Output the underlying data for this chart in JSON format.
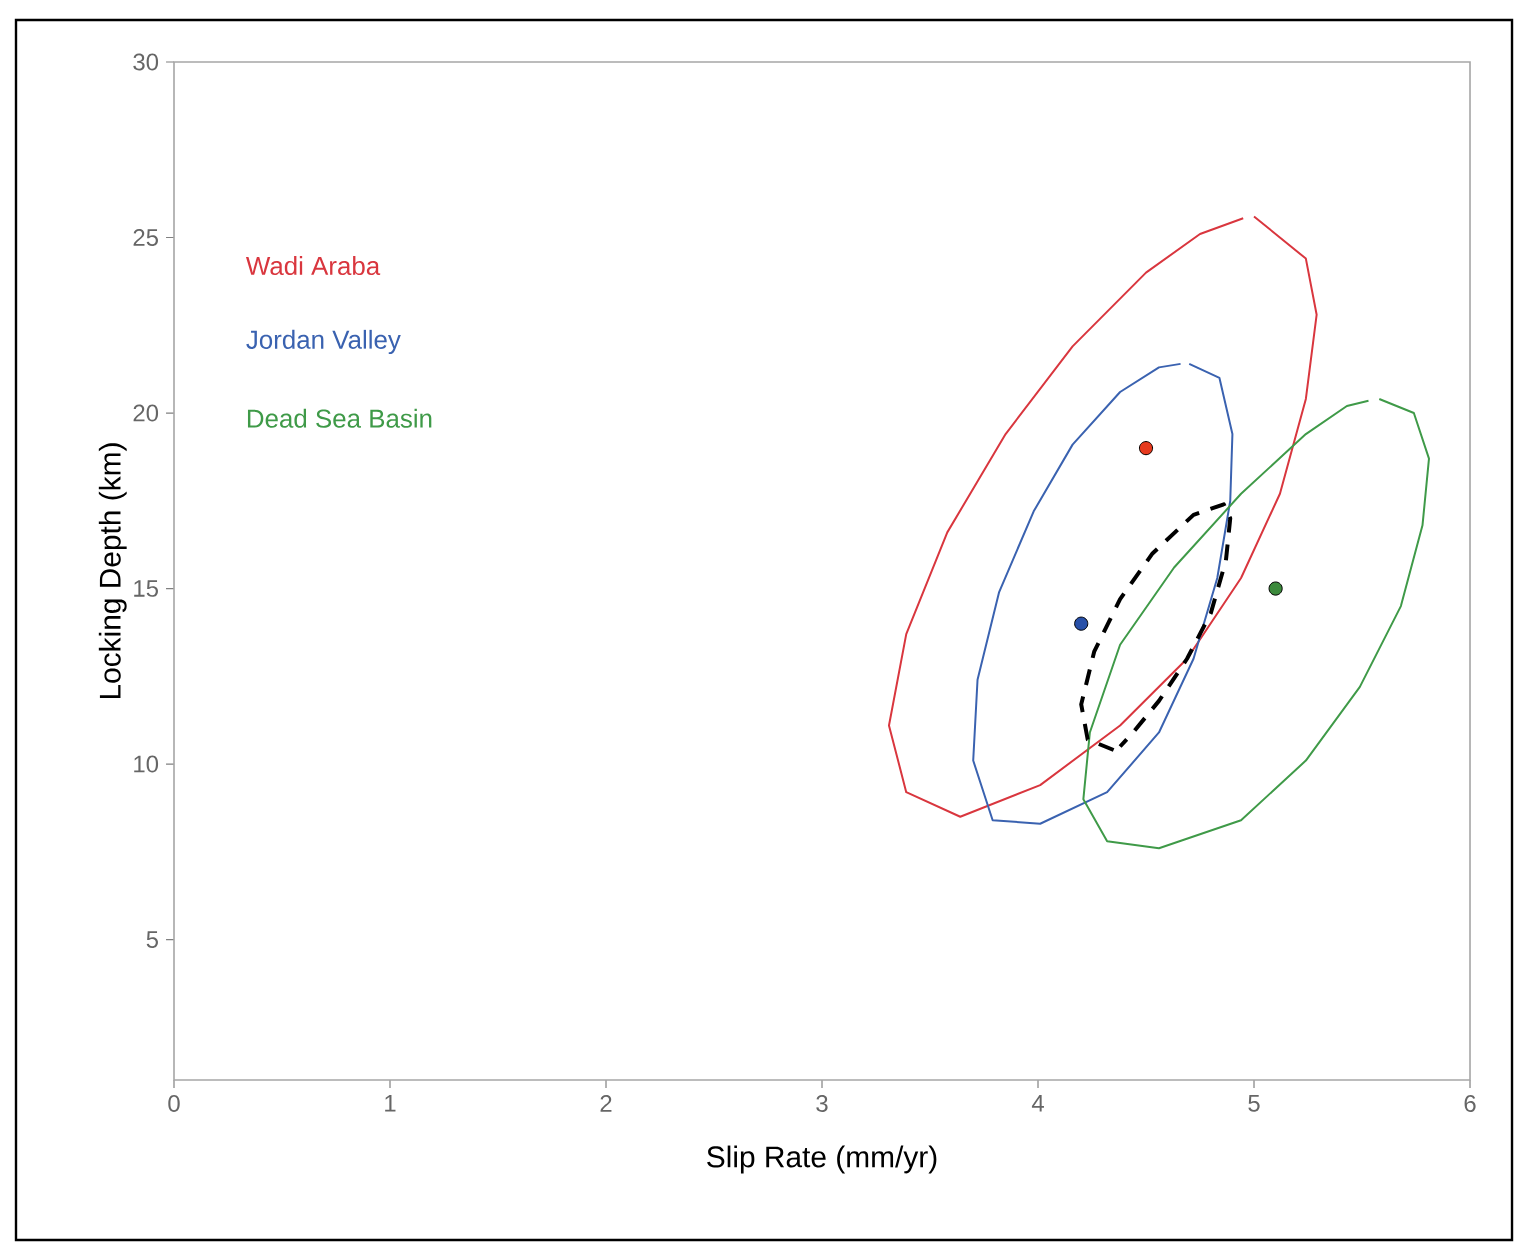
{
  "chart_data": {
    "type": "line",
    "xlabel": "Slip Rate (mm/yr)",
    "ylabel": "Locking Depth (km)",
    "xlim": [
      0,
      6
    ],
    "ylim": [
      1,
      30
    ],
    "xticks": [
      0,
      1,
      2,
      3,
      4,
      5,
      6
    ],
    "yticks": [
      5,
      10,
      15,
      20,
      25,
      30
    ],
    "grid": false,
    "series": [
      {
        "name": "Wadi Araba",
        "color": "#d9363e",
        "line_style": "solid",
        "x": [
          5.0,
          5.24,
          5.29,
          5.24,
          5.12,
          4.94,
          4.69,
          4.38,
          4.01,
          3.64,
          3.39,
          3.31,
          3.39,
          3.58,
          3.85,
          4.16,
          4.5,
          4.75,
          4.95
        ],
        "values": [
          25.6,
          24.4,
          22.8,
          20.4,
          17.7,
          15.3,
          13.0,
          11.1,
          9.4,
          8.5,
          9.2,
          11.1,
          13.7,
          16.6,
          19.4,
          21.9,
          24.0,
          25.1,
          25.55
        ]
      },
      {
        "name": "Jordan Valley",
        "color": "#3a62b0",
        "line_style": "solid",
        "x": [
          4.7,
          4.84,
          4.9,
          4.89,
          4.83,
          4.72,
          4.56,
          4.32,
          4.01,
          3.79,
          3.7,
          3.72,
          3.82,
          3.98,
          4.16,
          4.38,
          4.56,
          4.66
        ],
        "values": [
          21.4,
          21.0,
          19.4,
          17.5,
          15.3,
          13.0,
          10.9,
          9.2,
          8.3,
          8.4,
          10.1,
          12.4,
          14.9,
          17.2,
          19.1,
          20.6,
          21.3,
          21.4
        ]
      },
      {
        "name": "Dead Sea Basin",
        "color": "#3f9a48",
        "line_style": "solid",
        "x": [
          5.58,
          5.74,
          5.81,
          5.78,
          5.68,
          5.49,
          5.24,
          4.94,
          4.56,
          4.32,
          4.21,
          4.24,
          4.38,
          4.63,
          4.94,
          5.24,
          5.43,
          5.53
        ],
        "values": [
          20.4,
          20.0,
          18.7,
          16.8,
          14.5,
          12.2,
          10.1,
          8.4,
          7.6,
          7.8,
          9.0,
          10.9,
          13.4,
          15.6,
          17.7,
          19.4,
          20.2,
          20.35
        ]
      },
      {
        "color": "#000000",
        "line_style": "dashed",
        "x": [
          4.35,
          4.23,
          4.2,
          4.26,
          4.38,
          4.53,
          4.72,
          4.86,
          4.89,
          4.87,
          4.8,
          4.69,
          4.56,
          4.44,
          4.38
        ],
        "values": [
          10.4,
          10.7,
          11.7,
          13.2,
          14.7,
          16.0,
          17.1,
          17.4,
          17.0,
          15.8,
          14.3,
          13.0,
          11.8,
          10.9,
          10.5
        ]
      },
      {
        "type": "scatter",
        "marker": "circle",
        "color": "#e63a1e",
        "x": [
          4.5
        ],
        "values": [
          19
        ]
      },
      {
        "type": "scatter",
        "marker": "circle",
        "color": "#2850a8",
        "x": [
          4.2
        ],
        "values": [
          14
        ]
      },
      {
        "type": "scatter",
        "marker": "circle",
        "color": "#3c8a3c",
        "x": [
          5.1
        ],
        "values": [
          15
        ]
      }
    ]
  }
}
